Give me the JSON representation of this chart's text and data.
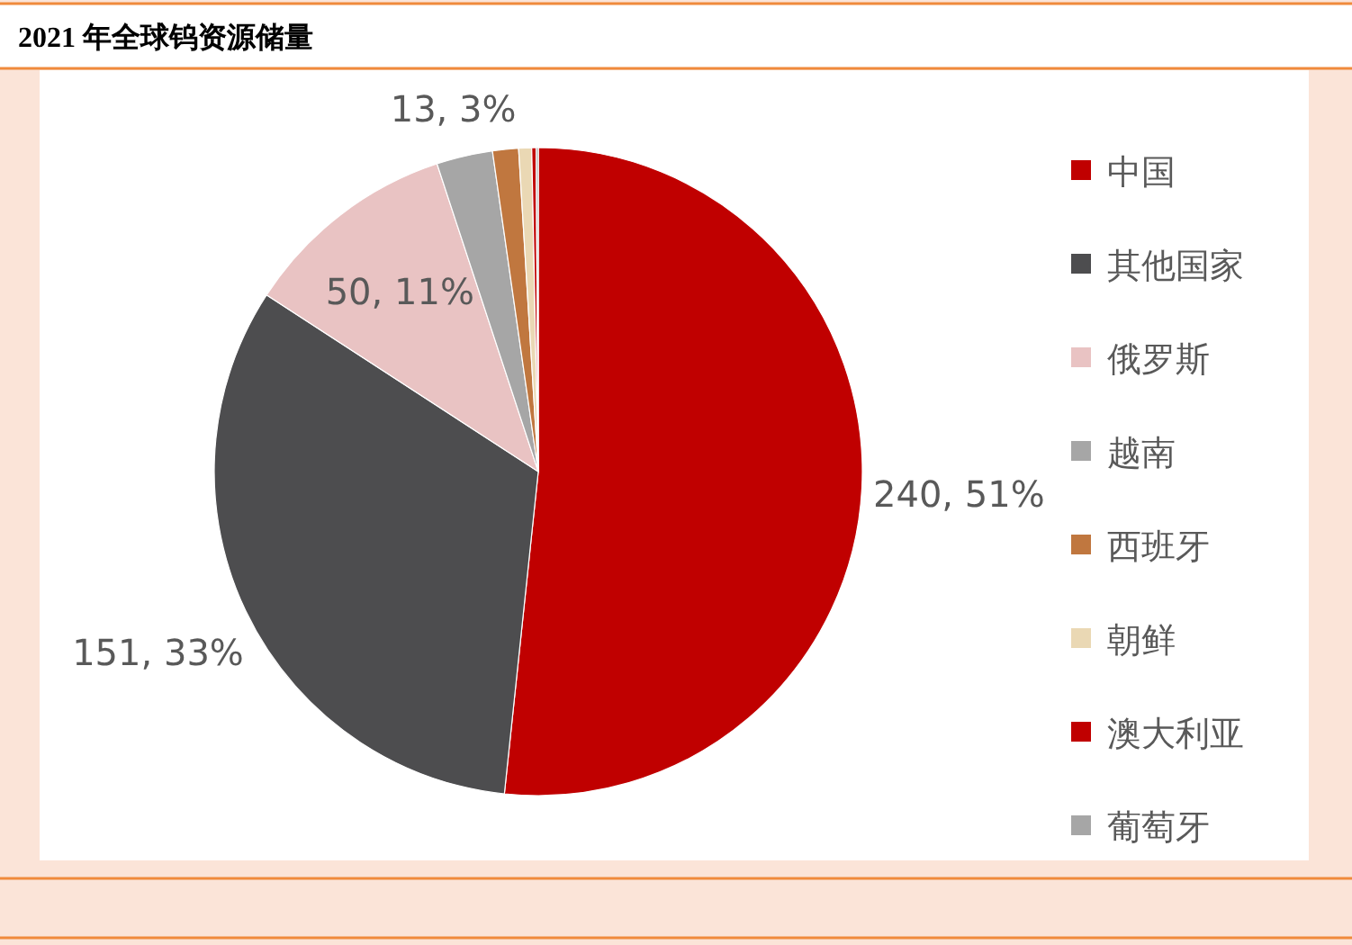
{
  "chart_data": {
    "type": "pie",
    "title": "2021 年全球钨资源储量",
    "categories": [
      "中国",
      "其他国家",
      "俄罗斯",
      "越南",
      "西班牙",
      "朝鲜",
      "澳大利亚",
      "葡萄牙"
    ],
    "values": [
      240,
      151,
      50,
      13,
      6,
      3,
      1,
      0.5
    ],
    "value_labels": [
      "240, 51%",
      "151, 33%",
      "50, 11%",
      "13, 3%",
      null,
      null,
      null,
      null
    ],
    "colors": [
      "#c00000",
      "#4d4d4f",
      "#e9c3c3",
      "#a6a6a6",
      "#c0773f",
      "#ead8b4",
      "#c00000",
      "#a6a6a6"
    ],
    "legend": "right"
  }
}
